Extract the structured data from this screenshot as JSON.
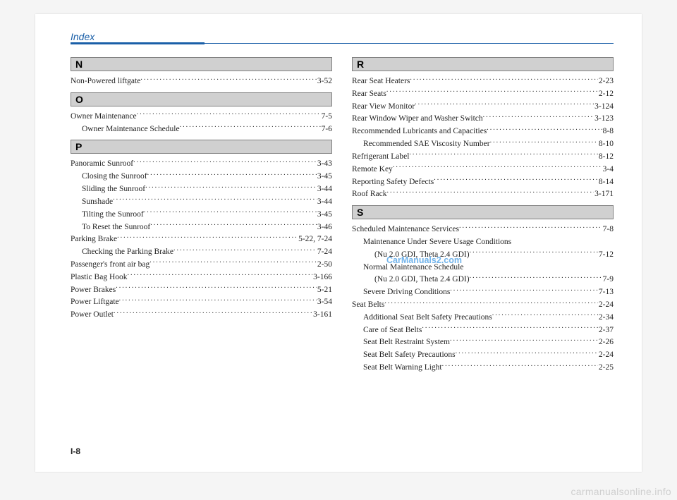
{
  "watermark_mid": "CarManuals2.com",
  "watermark_footer": "carmanualsonline.info",
  "page_number": "I-8",
  "header": {
    "title": "Index"
  },
  "left": {
    "sections": [
      {
        "letter": "N",
        "entries": [
          {
            "label": "Non-Powered liftgate",
            "page": "3-52",
            "indent": 0
          }
        ]
      },
      {
        "letter": "O",
        "entries": [
          {
            "label": "Owner Maintenance",
            "page": "7-5",
            "indent": 0
          },
          {
            "label": "Owner Maintenance Schedule",
            "page": "7-6",
            "indent": 1
          }
        ]
      },
      {
        "letter": "P",
        "entries": [
          {
            "label": "Panoramic Sunroof",
            "page": "3-43",
            "indent": 0
          },
          {
            "label": "Closing the Sunroof",
            "page": "3-45",
            "indent": 1
          },
          {
            "label": "Sliding the Sunroof",
            "page": "3-44",
            "indent": 1
          },
          {
            "label": "Sunshade",
            "page": "3-44",
            "indent": 1
          },
          {
            "label": "Tilting the Sunroof",
            "page": "3-45",
            "indent": 1
          },
          {
            "label": "To Reset the Sunroof",
            "page": "3-46",
            "indent": 1
          },
          {
            "label": "Parking Brake",
            "page": "5-22, 7-24",
            "indent": 0
          },
          {
            "label": "Checking the Parking Brake",
            "page": "7-24",
            "indent": 1
          },
          {
            "label": "Passenger's front air bag",
            "page": "2-50",
            "indent": 0
          },
          {
            "label": "Plastic Bag Hook",
            "page": "3-166",
            "indent": 0
          },
          {
            "label": "Power Brakes",
            "page": "5-21",
            "indent": 0
          },
          {
            "label": "Power Liftgate",
            "page": "3-54",
            "indent": 0
          },
          {
            "label": "Power Outlet",
            "page": "3-161",
            "indent": 0
          }
        ]
      }
    ]
  },
  "right": {
    "sections": [
      {
        "letter": "R",
        "entries": [
          {
            "label": "Rear Seat Heaters",
            "page": "2-23",
            "indent": 0
          },
          {
            "label": "Rear Seats",
            "page": "2-12",
            "indent": 0
          },
          {
            "label": "Rear View Monitor",
            "page": "3-124",
            "indent": 0
          },
          {
            "label": "Rear Window Wiper and Washer Switch",
            "page": "3-123",
            "indent": 0
          },
          {
            "label": "Recommended Lubricants and Capacities",
            "page": "8-8",
            "indent": 0
          },
          {
            "label": "Recommended SAE Viscosity Number",
            "page": "8-10",
            "indent": 1
          },
          {
            "label": "Refrigerant Label",
            "page": "8-12",
            "indent": 0
          },
          {
            "label": "Remote Key",
            "page": "3-4",
            "indent": 0
          },
          {
            "label": "Reporting Safety Defects",
            "page": "8-14",
            "indent": 0
          },
          {
            "label": "Roof Rack",
            "page": "3-171",
            "indent": 0
          }
        ]
      },
      {
        "letter": "S",
        "entries": [
          {
            "label": "Scheduled Maintenance Services",
            "page": "7-8",
            "indent": 0
          },
          {
            "label": "Maintenance Under Severe Usage Conditions",
            "page": "",
            "indent": 1,
            "nobreak": true
          },
          {
            "label": "(Nu 2.0 GDI, Theta 2.4 GDI)",
            "page": "7-12",
            "indent": 2
          },
          {
            "label": "Normal Maintenance Schedule",
            "page": "",
            "indent": 1,
            "nobreak": true
          },
          {
            "label": "(Nu 2.0 GDI, Theta 2.4 GDI)",
            "page": "7-9",
            "indent": 2
          },
          {
            "label": "Severe Driving Conditions",
            "page": "7-13",
            "indent": 1
          },
          {
            "label": "Seat Belts",
            "page": "2-24",
            "indent": 0
          },
          {
            "label": "Additional Seat Belt Safety Precautions",
            "page": "2-34",
            "indent": 1
          },
          {
            "label": "Care of Seat Belts",
            "page": "2-37",
            "indent": 1
          },
          {
            "label": "Seat Belt Restraint System",
            "page": "2-26",
            "indent": 1
          },
          {
            "label": "Seat Belt Safety Precautions",
            "page": "2-24",
            "indent": 1
          },
          {
            "label": "Seat Belt Warning Light",
            "page": "2-25",
            "indent": 1
          }
        ]
      }
    ]
  }
}
